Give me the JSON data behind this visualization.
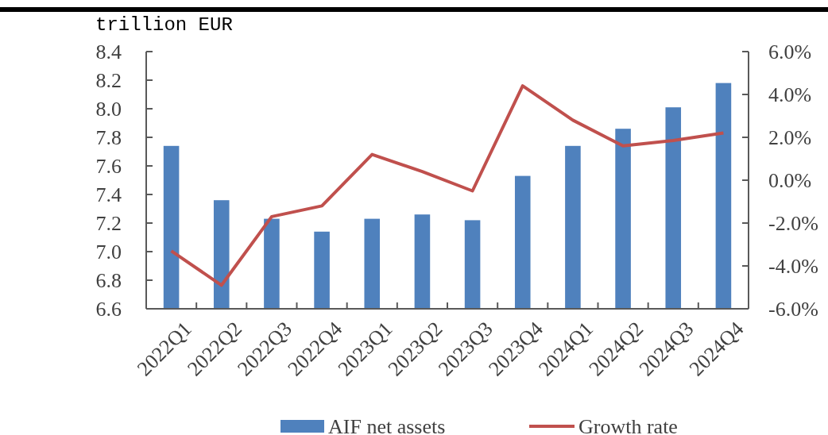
{
  "chart_data": {
    "type": "bar",
    "ylabel": "trillion EUR",
    "categories": [
      "2022Q1",
      "2022Q2",
      "2022Q3",
      "2022Q4",
      "2023Q1",
      "2023Q2",
      "2023Q3",
      "2023Q4",
      "2024Q1",
      "2024Q2",
      "2024Q3",
      "2024Q4"
    ],
    "series": [
      {
        "name": "AIF net assets",
        "color": "#4f81bd",
        "values": [
          7.74,
          7.36,
          7.23,
          7.14,
          7.23,
          7.26,
          7.22,
          7.53,
          7.74,
          7.86,
          8.01,
          8.18
        ]
      },
      {
        "name": "Growth rate",
        "type": "line",
        "axis": "y2",
        "color": "#c0504d",
        "values": [
          -3.3,
          -4.9,
          -1.7,
          -1.2,
          1.2,
          0.4,
          -0.5,
          4.4,
          2.8,
          1.6,
          1.85,
          2.2
        ]
      }
    ],
    "ylim": [
      6.6,
      8.4
    ],
    "yticks": [
      {
        "value": 6.6,
        "label": "6.6"
      },
      {
        "value": 6.8,
        "label": "6.8"
      },
      {
        "value": 7,
        "label": "7.0"
      },
      {
        "value": 7.2,
        "label": "7.2"
      },
      {
        "value": 7.4,
        "label": "7.4"
      },
      {
        "value": 7.6,
        "label": "7.6"
      },
      {
        "value": 7.8,
        "label": "7.8"
      },
      {
        "value": 8,
        "label": "8.0"
      },
      {
        "value": 8.2,
        "label": "8.2"
      },
      {
        "value": 8.4,
        "label": "8.4"
      }
    ],
    "y2lim": [
      -6,
      6
    ],
    "y2ticks": [
      {
        "value": -6,
        "label": "-6.0%"
      },
      {
        "value": -4,
        "label": "-4.0%"
      },
      {
        "value": -2,
        "label": "-2.0%"
      },
      {
        "value": 0,
        "label": "0.0%"
      },
      {
        "value": 2,
        "label": "2.0%"
      },
      {
        "value": 4,
        "label": "4.0%"
      },
      {
        "value": 6,
        "label": "6.0%"
      }
    ],
    "grid": false,
    "legend": "bottom",
    "line_style": "solid",
    "marker": "none"
  }
}
